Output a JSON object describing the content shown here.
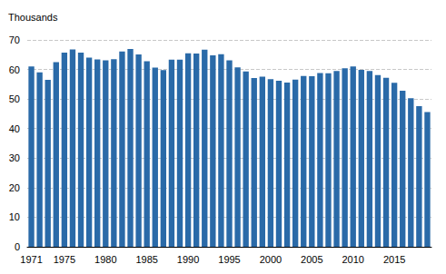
{
  "chart_data": {
    "type": "bar",
    "ylabel": "Thousands",
    "categories": [
      "1971",
      null,
      null,
      null,
      "1975",
      null,
      null,
      null,
      null,
      "1980",
      null,
      null,
      null,
      null,
      "1985",
      null,
      null,
      null,
      null,
      "1990",
      null,
      null,
      null,
      null,
      "1995",
      null,
      null,
      null,
      null,
      "2000",
      null,
      null,
      null,
      null,
      "2005",
      null,
      null,
      null,
      null,
      "2010",
      null,
      null,
      null,
      null,
      "2015",
      null,
      null,
      null,
      null
    ],
    "values": [
      61,
      59,
      56.5,
      62.5,
      65.7,
      66.8,
      65.7,
      64,
      63.4,
      63.1,
      63.5,
      66.1,
      66.9,
      65.1,
      62.8,
      60.6,
      59.8,
      63.3,
      63.3,
      65.5,
      65.4,
      66.7,
      64.8,
      65.2,
      63.1,
      60.7,
      59.3,
      57.1,
      57.6,
      56.7,
      56.2,
      55.6,
      56.6,
      57.8,
      57.7,
      58.8,
      58.7,
      59.5,
      60.4,
      61,
      59.9,
      59.5,
      58.1,
      57.2,
      55.5,
      52.8,
      50.3,
      47.6,
      45.6
    ],
    "color": "#2a6aa8",
    "ylim": [
      0,
      70
    ],
    "yticks": [
      0,
      10,
      20,
      30,
      40,
      50,
      60,
      70
    ],
    "grid": true
  }
}
